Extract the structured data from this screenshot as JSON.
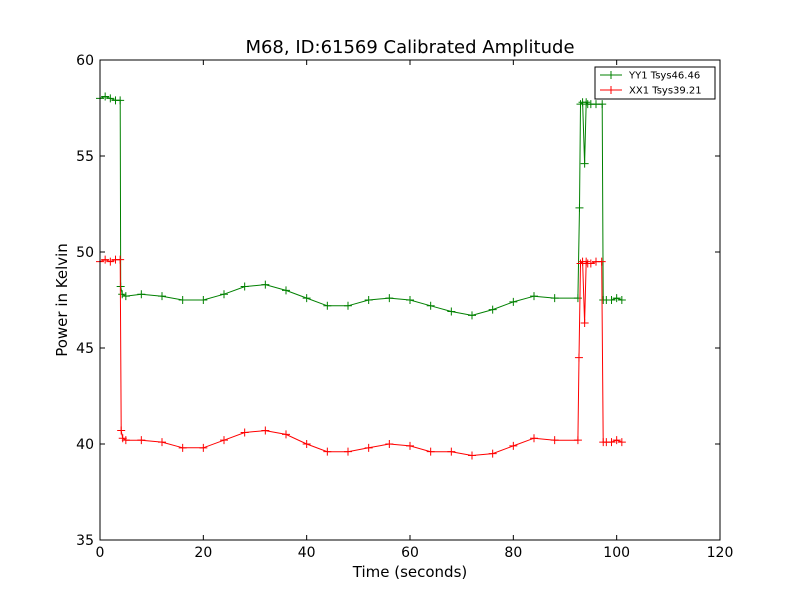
{
  "chart_data": {
    "type": "line",
    "title": "M68, ID:61569 Calibrated Amplitude",
    "xlabel": "Time (seconds)",
    "ylabel": "Power in Kelvin",
    "xlim": [
      0,
      120
    ],
    "ylim": [
      35,
      60
    ],
    "xticks": [
      0,
      20,
      40,
      60,
      80,
      100,
      120
    ],
    "yticks": [
      35,
      40,
      45,
      50,
      55,
      60
    ],
    "grid": false,
    "legend_position": "top-right",
    "marker": "plus",
    "series": [
      {
        "name": "YY1 Tsys46.46",
        "color": "#008000",
        "x": [
          0,
          1,
          2,
          3,
          3.9,
          4.0,
          4.3,
          5,
          8,
          12,
          16,
          20,
          24,
          28,
          32,
          36,
          40,
          44,
          48,
          52,
          56,
          60,
          64,
          68,
          72,
          76,
          80,
          84,
          88,
          92.5,
          92.8,
          93.0,
          93.4,
          93.8,
          94.1,
          94.4,
          95,
          96,
          97.2,
          97.4,
          98,
          99,
          100,
          101
        ],
        "y": [
          58.0,
          58.1,
          58.0,
          57.9,
          57.9,
          48.2,
          47.8,
          47.7,
          47.8,
          47.7,
          47.5,
          47.5,
          47.8,
          48.2,
          48.3,
          48.0,
          47.6,
          47.2,
          47.2,
          47.5,
          47.6,
          47.5,
          47.2,
          46.9,
          46.7,
          47.0,
          47.4,
          47.7,
          47.6,
          47.6,
          52.3,
          57.7,
          57.8,
          54.6,
          57.8,
          57.7,
          57.7,
          57.7,
          57.7,
          47.5,
          47.5,
          47.5,
          47.6,
          47.5
        ]
      },
      {
        "name": "XX1 Tsys39.21",
        "color": "#ff0000",
        "x": [
          0,
          1,
          2,
          3,
          3.9,
          4.1,
          4.4,
          5,
          8,
          12,
          16,
          20,
          24,
          28,
          32,
          36,
          40,
          44,
          48,
          52,
          56,
          60,
          64,
          68,
          72,
          76,
          80,
          84,
          88,
          92.5,
          92.7,
          93.0,
          93.4,
          93.8,
          94.1,
          94.4,
          95,
          96,
          97.1,
          97.4,
          98,
          99,
          100,
          101
        ],
        "y": [
          49.5,
          49.6,
          49.5,
          49.6,
          49.6,
          40.7,
          40.3,
          40.2,
          40.2,
          40.1,
          39.8,
          39.8,
          40.2,
          40.6,
          40.7,
          40.5,
          40.0,
          39.6,
          39.6,
          39.8,
          40.0,
          39.9,
          39.6,
          39.6,
          39.4,
          39.5,
          39.9,
          40.3,
          40.2,
          40.2,
          44.5,
          49.4,
          49.5,
          46.3,
          49.5,
          49.4,
          49.4,
          49.5,
          49.5,
          40.1,
          40.1,
          40.1,
          40.2,
          40.1
        ]
      }
    ]
  }
}
